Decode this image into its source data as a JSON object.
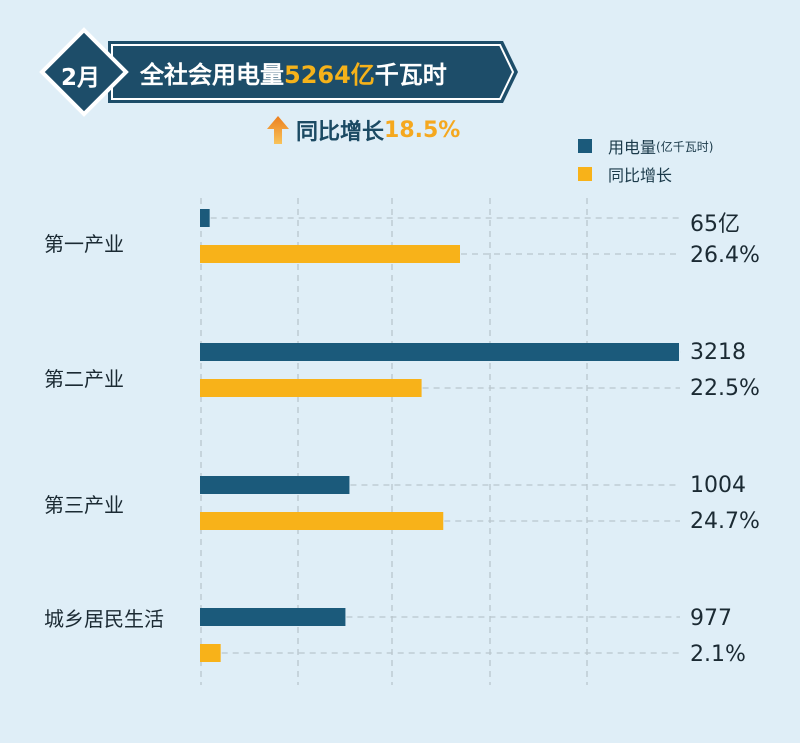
{
  "header": {
    "month": "2月",
    "title_pre": "全社会用电量",
    "title_value": "5264亿",
    "title_post": "千瓦时",
    "growth_label": "同比增长",
    "growth_value": "18.5%"
  },
  "colors": {
    "background": "#dfeef7",
    "banner": "#1d4d69",
    "usage": "#1b5a7b",
    "growth": "#f8b219",
    "text": "#1b2a33"
  },
  "icons": {
    "growth": "up-arrow-icon"
  },
  "chart_data": {
    "type": "bar",
    "orientation": "horizontal",
    "categories": [
      "第一产业",
      "第二产业",
      "第三产业",
      "城乡居民生活"
    ],
    "series": [
      {
        "name": "用电量",
        "unit": "(亿千瓦时)",
        "values": [
          65,
          3218,
          1004,
          977
        ],
        "labels": [
          "65亿",
          "3218",
          "1004",
          "977"
        ]
      },
      {
        "name": "同比增长",
        "values": [
          26.4,
          22.5,
          24.7,
          2.1
        ],
        "labels": [
          "26.4%",
          "22.5%",
          "24.7%",
          "2.1%"
        ]
      }
    ],
    "legend_position": "top-right",
    "grid": true
  }
}
